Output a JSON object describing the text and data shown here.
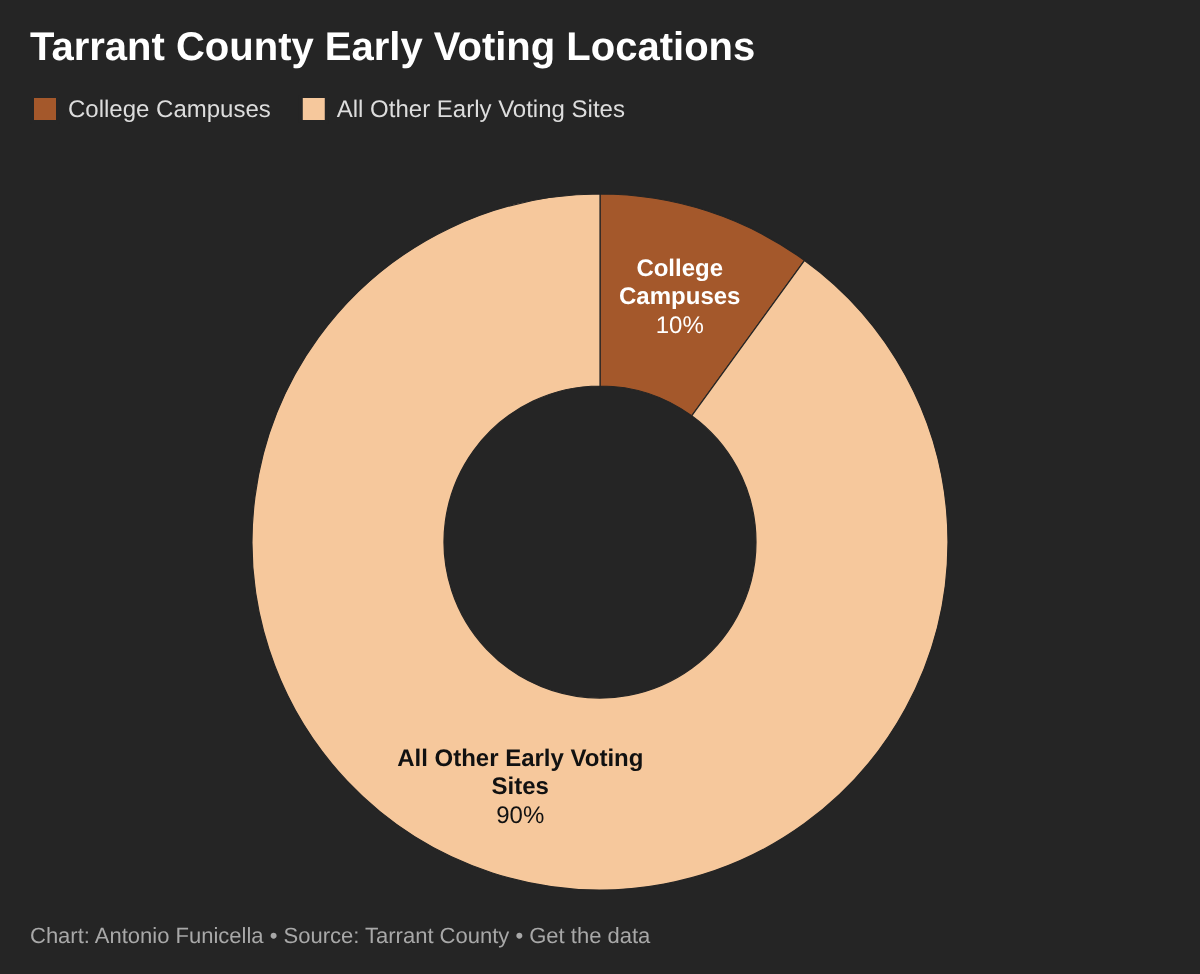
{
  "chart_data": {
    "type": "donut",
    "title": "Tarrant County Early Voting Locations",
    "categories": [
      "College Campuses",
      "All Other Early Voting Sites"
    ],
    "values": [
      10,
      90
    ],
    "colors": [
      "#a4582b",
      "#f6c89c"
    ],
    "value_labels": [
      "10%",
      "90%"
    ],
    "legend": "top left",
    "annotations": [
      "Chart: Antonio Funicella • Source: Tarrant County • Get the data"
    ]
  }
}
